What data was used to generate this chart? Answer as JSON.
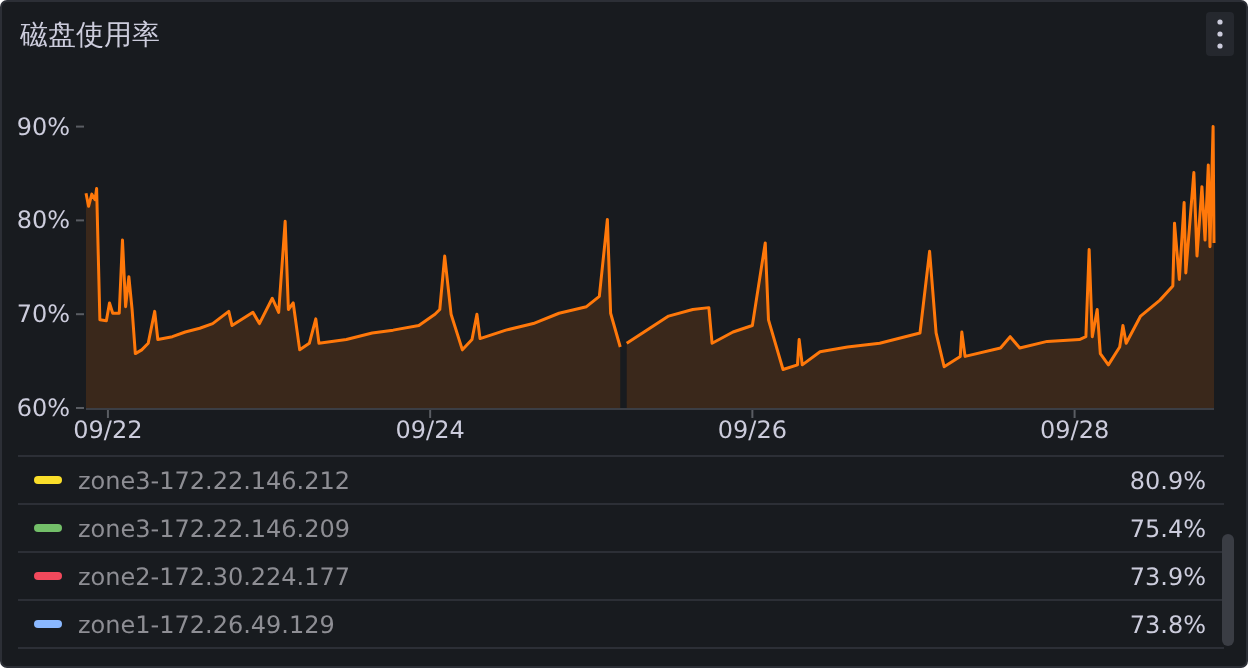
{
  "chart_data": {
    "type": "area",
    "title": "磁盘使用率",
    "x": [
      "--09-21T20:44",
      "--09-21T21:07",
      "--09-21T21:36",
      "--09-21T22:05",
      "--09-21T22:19",
      "--09-21T22:48",
      "--09-21T23:46",
      "--09-22T00:14",
      "--09-22T00:43",
      "--09-22T01:41",
      "--09-22T02:10",
      "--09-22T02:38",
      "--09-22T03:07",
      "--09-22T03:36",
      "--09-22T04:05",
      "--09-22T05:02",
      "--09-22T06:00",
      "--09-22T06:58",
      "--09-22T07:26",
      "--09-22T09:36",
      "--09-22T11:31",
      "--09-22T13:41",
      "--09-22T15:36",
      "--09-22T18:00",
      "--09-22T18:29",
      "--09-22T21:36",
      "--09-22T22:34",
      "--09-23T00:29",
      "--09-23T01:26",
      "--09-23T02:24",
      "--09-23T02:53",
      "--09-23T03:36",
      "--09-23T04:34",
      "--09-23T06:00",
      "--09-23T06:58",
      "--09-23T07:26",
      "--09-23T11:31",
      "--09-23T15:22",
      "--09-23T18:29",
      "--09-23T22:19",
      "--09-24T00:43",
      "--09-24T01:26",
      "--09-24T02:10",
      "--09-24T03:07",
      "--09-24T04:48",
      "--09-24T06:14",
      "--09-24T06:58",
      "--09-24T07:26",
      "--09-24T11:17",
      "--09-24T15:22",
      "--09-24T19:12",
      "--09-24T23:17",
      "--09-25T01:12",
      "--09-25T02:24",
      "--09-25T02:53",
      "--09-25T04:19",
      "--09-25T04:48",
      "--09-25T05:17",
      "--09-25T09:07",
      "--09-25T11:31",
      "--09-25T15:07",
      "--09-25T17:31",
      "--09-25T18:00",
      "--09-25T21:07",
      "--09-26T00:00",
      "--09-26T01:55",
      "--09-26T02:24",
      "--09-26T04:34",
      "--09-26T06:43",
      "--09-26T06:58",
      "--09-26T07:26",
      "--09-26T10:05",
      "--09-26T14:10",
      "--09-26T18:58",
      "--09-27T00:58",
      "--09-27T02:24",
      "--09-27T03:22",
      "--09-27T04:34",
      "--09-27T06:58",
      "--09-27T07:12",
      "--09-27T07:41",
      "--09-27T12:58",
      "--09-27T14:24",
      "--09-27T15:50",
      "--09-27T19:55",
      "--09-28T00:43",
      "--09-28T01:41",
      "--09-28T02:10",
      "--09-28T02:38",
      "--09-28T03:22",
      "--09-28T03:50",
      "--09-28T05:02",
      "--09-28T06:43",
      "--09-28T07:12",
      "--09-28T07:41",
      "--09-28T09:50",
      "--09-28T12:43",
      "--09-28T14:38",
      "--09-28T14:53",
      "--09-28T15:36",
      "--09-28T16:19",
      "--09-28T16:34",
      "--09-28T17:46",
      "--09-28T18:14",
      "--09-28T18:58",
      "--09-28T19:26",
      "--09-28T19:55",
      "--09-28T20:10",
      "--09-28T20:38",
      "--09-28T20:46"
    ],
    "series": [
      {
        "color": "#ff780a",
        "values": [
          82.9,
          81.5,
          82.8,
          82.2,
          83.4,
          69.4,
          69.3,
          71.2,
          70.1,
          70.1,
          77.9,
          70.8,
          74.0,
          70.5,
          65.8,
          66.2,
          66.9,
          70.3,
          67.3,
          67.6,
          68.1,
          68.5,
          69.0,
          70.3,
          68.8,
          70.2,
          69.0,
          71.7,
          70.2,
          79.9,
          70.5,
          71.2,
          66.2,
          66.9,
          69.5,
          66.9,
          67.3,
          68.0,
          68.3,
          68.8,
          70.0,
          70.5,
          76.2,
          70.0,
          66.2,
          67.3,
          70.0,
          67.4,
          68.3,
          69.0,
          70.1,
          70.8,
          71.9,
          80.1,
          70.1,
          66.5,
          null,
          66.9,
          68.7,
          69.8,
          70.5,
          70.7,
          66.9,
          68.1,
          68.8,
          77.6,
          69.4,
          64.1,
          64.6,
          67.3,
          64.6,
          66.0,
          66.5,
          66.9,
          68.0,
          76.7,
          68.0,
          64.4,
          65.5,
          68.1,
          65.5,
          66.4,
          67.6,
          66.4,
          67.1,
          67.3,
          67.6,
          76.9,
          67.6,
          70.5,
          65.8,
          64.6,
          66.5,
          68.8,
          66.9,
          69.8,
          71.5,
          73.0,
          79.7,
          73.7,
          81.9,
          74.4,
          85.1,
          76.2,
          83.6,
          77.9,
          85.9,
          77.2,
          90.0,
          77.6
        ]
      },
      {
        "name": "zone3-172.22.146.212",
        "color": "#fade2a",
        "values": [
          null,
          null,
          null,
          null,
          null,
          null,
          null,
          null,
          null,
          null,
          null,
          null,
          null,
          null,
          null,
          null,
          null,
          null,
          null,
          null,
          null,
          null,
          null,
          null,
          null,
          null,
          null,
          null,
          null,
          null,
          null,
          null,
          null,
          null,
          null,
          null,
          null,
          null,
          null,
          null,
          null,
          null,
          null,
          null,
          null,
          null,
          null,
          null,
          null,
          null,
          null,
          null,
          null,
          null,
          null,
          null,
          null,
          null,
          null,
          null,
          null,
          null,
          null,
          null,
          null,
          null,
          null,
          null,
          null,
          null,
          null,
          null,
          null,
          null,
          null,
          null,
          null,
          null,
          null,
          null,
          null,
          null,
          null,
          null,
          null,
          null,
          null,
          null,
          null,
          null,
          null,
          null,
          null,
          null,
          null,
          null,
          null,
          null,
          null,
          null,
          null,
          null,
          null,
          null,
          null,
          null,
          null,
          null,
          null,
          null
        ]
      },
      {
        "name": "zone3-172.22.146.209",
        "color": "#73bf69",
        "values": [
          null,
          null,
          null,
          null,
          null,
          null,
          null,
          null,
          null,
          null,
          null,
          null,
          null,
          null,
          null,
          null,
          null,
          null,
          null,
          null,
          null,
          null,
          null,
          null,
          null,
          null,
          null,
          null,
          null,
          null,
          null,
          null,
          null,
          null,
          null,
          null,
          null,
          null,
          null,
          null,
          null,
          null,
          null,
          null,
          null,
          null,
          null,
          null,
          null,
          null,
          null,
          null,
          null,
          null,
          null,
          null,
          null,
          null,
          null,
          null,
          null,
          null,
          null,
          null,
          null,
          null,
          null,
          null,
          null,
          null,
          null,
          null,
          null,
          null,
          null,
          null,
          null,
          null,
          null,
          null,
          null,
          null,
          null,
          null,
          null,
          null,
          null,
          null,
          null,
          null,
          null,
          null,
          null,
          null,
          null,
          null,
          null,
          null,
          null,
          null,
          null,
          null,
          null,
          null,
          null,
          null,
          null,
          null,
          null,
          null
        ]
      },
      {
        "name": "zone2-172.30.224.177",
        "color": "#f2495c",
        "values": [
          null,
          null,
          null,
          null,
          null,
          null,
          null,
          null,
          null,
          null,
          null,
          null,
          null,
          null,
          null,
          null,
          null,
          null,
          null,
          null,
          null,
          null,
          null,
          null,
          null,
          null,
          null,
          null,
          null,
          null,
          null,
          null,
          null,
          null,
          null,
          null,
          null,
          null,
          null,
          null,
          null,
          null,
          null,
          null,
          null,
          null,
          null,
          null,
          null,
          null,
          null,
          null,
          null,
          null,
          null,
          null,
          null,
          null,
          null,
          null,
          null,
          null,
          null,
          null,
          null,
          null,
          null,
          null,
          null,
          null,
          null,
          null,
          null,
          null,
          null,
          null,
          null,
          null,
          null,
          null,
          null,
          null,
          null,
          null,
          null,
          null,
          null,
          null,
          null,
          null,
          null,
          null,
          null,
          null,
          null,
          null,
          null,
          null,
          null,
          null,
          null,
          null,
          null,
          null,
          null,
          null,
          null,
          null,
          null,
          null
        ]
      },
      {
        "name": "zone1-172.26.49.129",
        "color": "#8ab8ff",
        "values": [
          null,
          null,
          null,
          null,
          null,
          null,
          null,
          null,
          null,
          null,
          null,
          null,
          null,
          null,
          null,
          null,
          null,
          null,
          null,
          null,
          null,
          null,
          null,
          null,
          null,
          null,
          null,
          null,
          null,
          null,
          null,
          null,
          null,
          null,
          null,
          null,
          null,
          null,
          null,
          null,
          null,
          null,
          null,
          null,
          null,
          null,
          null,
          null,
          null,
          null,
          null,
          null,
          null,
          null,
          null,
          null,
          null,
          null,
          null,
          null,
          null,
          null,
          null,
          null,
          null,
          null,
          null,
          null,
          null,
          null,
          null,
          null,
          null,
          null,
          null,
          null,
          null,
          null,
          null,
          null,
          null,
          null,
          null,
          null,
          null,
          null,
          null,
          null,
          null,
          null,
          null,
          null,
          null,
          null,
          null,
          null,
          null,
          null,
          null,
          null,
          null,
          null,
          null,
          null,
          null,
          null,
          null,
          null,
          null,
          null
        ]
      }
    ],
    "xlim": [
      "--09-21T20:44",
      "--09-28T20:46"
    ],
    "xticks": [
      {
        "value": "--09-22",
        "label": "09/22"
      },
      {
        "value": "--09-24",
        "label": "09/24"
      },
      {
        "value": "--09-26",
        "label": "09/26"
      },
      {
        "value": "--09-28",
        "label": "09/28"
      }
    ],
    "ylim": [
      60,
      90
    ],
    "yticks": [
      {
        "value": 60,
        "label": "60%"
      },
      {
        "value": 70,
        "label": "70%"
      },
      {
        "value": 80,
        "label": "80%"
      },
      {
        "value": 90,
        "label": "90%"
      }
    ],
    "legend": "bottom",
    "annotations": [
      "80.9%",
      "75.4%",
      "73.9%",
      "73.8%"
    ]
  }
}
